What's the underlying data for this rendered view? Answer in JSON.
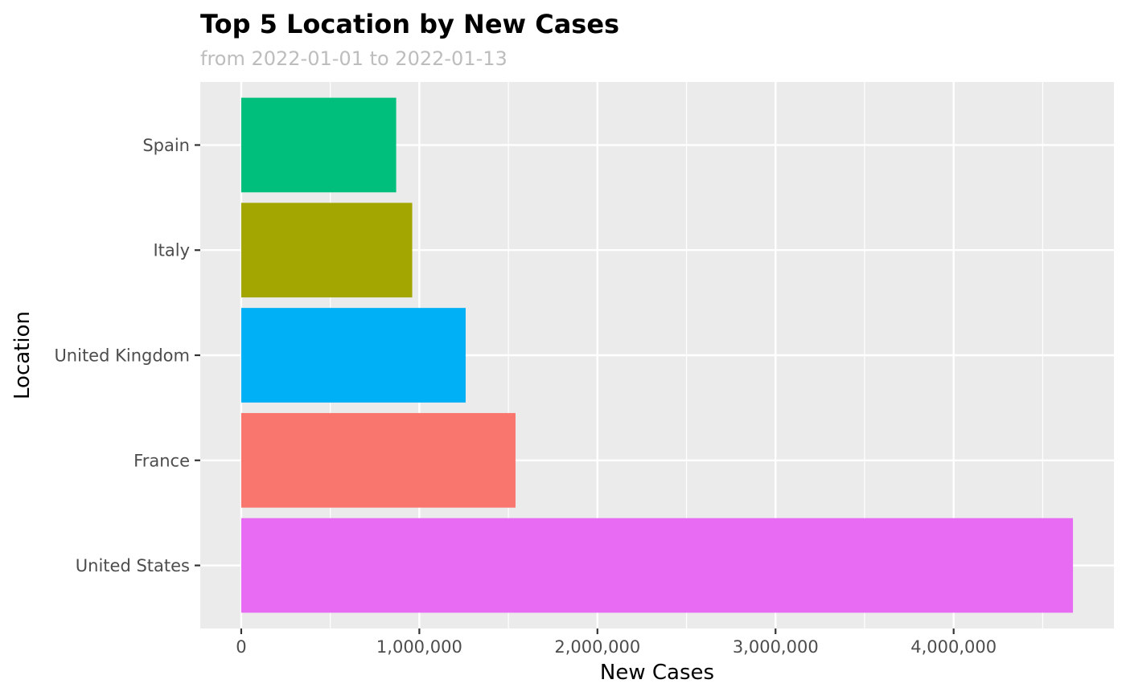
{
  "chart_data": {
    "type": "bar",
    "orientation": "horizontal",
    "title": "Top 5 Location by New Cases",
    "subtitle": "from 2022-01-01 to 2022-01-13",
    "xlabel": "New Cases",
    "ylabel": "Location",
    "categories": [
      "United States",
      "France",
      "United Kingdom",
      "Italy",
      "Spain"
    ],
    "values": [
      4670000,
      1540000,
      1260000,
      960000,
      870000
    ],
    "colors": [
      "#E76BF3",
      "#F8766D",
      "#00B0F6",
      "#A3A500",
      "#00BF7D"
    ],
    "xlim": [
      -230000,
      4900000
    ],
    "x_ticks": [
      0,
      1000000,
      2000000,
      3000000,
      4000000
    ],
    "x_tick_labels": [
      "0",
      "1,000,000",
      "2,000,000",
      "3,000,000",
      "4,000,000"
    ],
    "grid": true,
    "legend": "none",
    "panel_background": "#EBEBEB"
  }
}
